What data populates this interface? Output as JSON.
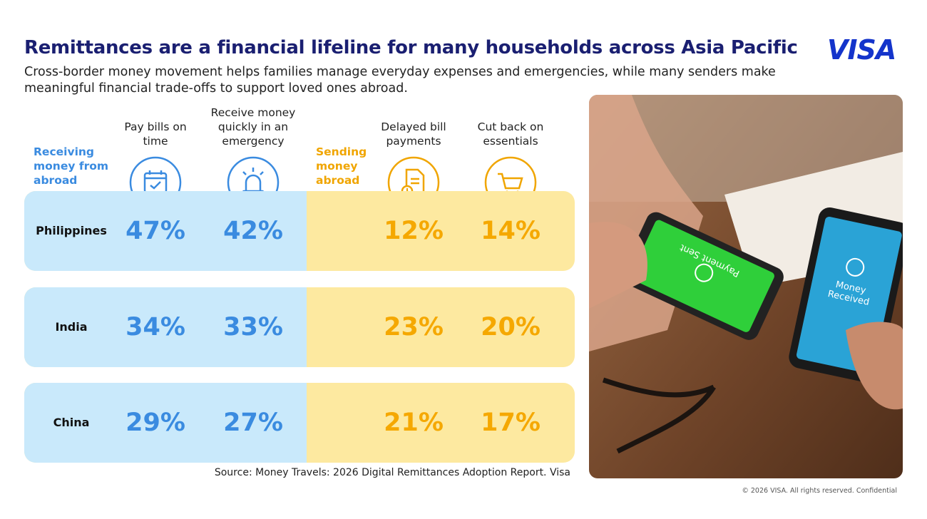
{
  "header": {
    "title": "Remittances are a financial lifeline for many households across Asia Pacific",
    "subtitle": "Cross-border money movement helps families manage everyday expenses and emergencies, while many senders make meaningful financial trade-offs to support loved ones abroad.",
    "logo": "VISA"
  },
  "groups": {
    "receiving": "Receiving money from abroad",
    "sending": "Sending money abroad"
  },
  "columns": [
    "Pay bills on time",
    "Receive money quickly in an emergency",
    "Delayed bill payments",
    "Cut back on essentials"
  ],
  "rows": [
    {
      "country": "Philippines",
      "values": [
        "47%",
        "42%",
        "12%",
        "14%"
      ]
    },
    {
      "country": "India",
      "values": [
        "34%",
        "33%",
        "23%",
        "20%"
      ]
    },
    {
      "country": "China",
      "values": [
        "29%",
        "27%",
        "21%",
        "17%"
      ]
    }
  ],
  "source": "Source: Money Travels: 2026 Digital Remittances Adoption Report. Visa",
  "copyright": "© 2026 VISA. All rights reserved. Confidential",
  "photo": {
    "screens": [
      "Payment Sent",
      "Money Received"
    ]
  }
}
